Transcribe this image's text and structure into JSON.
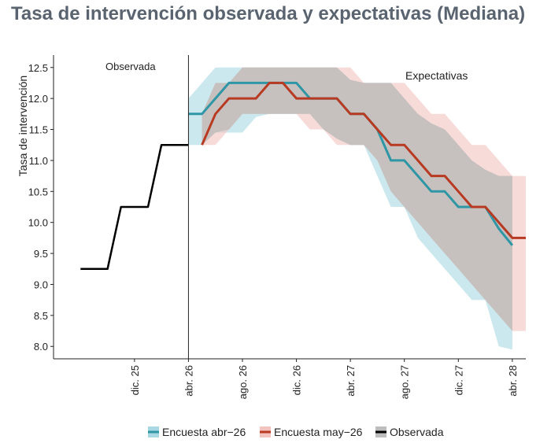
{
  "title": "Tasa de intervención observada y expectativas (Mediana)",
  "chart_data": {
    "type": "line",
    "ylabel": "Tasa de intervención",
    "ylim": [
      7.8,
      12.7
    ],
    "yticks": [
      "8.0",
      "8.5",
      "9.0",
      "9.5",
      "10.0",
      "10.5",
      "11.0",
      "11.5",
      "12.0",
      "12.5"
    ],
    "x_axis": {
      "start": "2025-06",
      "end": "2028-05",
      "ticks": [
        {
          "date": "2025-12",
          "label": "dic. 25"
        },
        {
          "date": "2026-04",
          "label": "abr. 26"
        },
        {
          "date": "2026-08",
          "label": "ago. 26"
        },
        {
          "date": "2026-12",
          "label": "dic. 26"
        },
        {
          "date": "2027-04",
          "label": "abr. 27"
        },
        {
          "date": "2027-08",
          "label": "ago. 27"
        },
        {
          "date": "2027-12",
          "label": "dic. 27"
        },
        {
          "date": "2028-04",
          "label": "abr. 28"
        }
      ]
    },
    "divider_date": "2026-04",
    "annotations": {
      "left": "Observada",
      "right": "Expectativas"
    },
    "series": [
      {
        "name": "Observada",
        "color": "#000000",
        "points": [
          [
            "2025-08",
            9.25
          ],
          [
            "2025-10",
            9.25
          ],
          [
            "2025-11",
            10.25
          ],
          [
            "2026-01",
            10.25
          ],
          [
            "2026-02",
            11.25
          ],
          [
            "2026-04",
            11.25
          ]
        ]
      },
      {
        "name": "Encuesta abr−26",
        "color": "#2f96a6",
        "band_color": "#a8d8e3",
        "points": [
          [
            "2026-04",
            11.75
          ],
          [
            "2026-05",
            11.75
          ],
          [
            "2026-06",
            12.0
          ],
          [
            "2026-07",
            12.25
          ],
          [
            "2026-08",
            12.25
          ],
          [
            "2026-09",
            12.25
          ],
          [
            "2026-10",
            12.25
          ],
          [
            "2026-11",
            12.25
          ],
          [
            "2026-12",
            12.25
          ],
          [
            "2027-01",
            12.0
          ],
          [
            "2027-02",
            12.0
          ],
          [
            "2027-03",
            12.0
          ],
          [
            "2027-04",
            11.75
          ],
          [
            "2027-05",
            11.75
          ],
          [
            "2027-06",
            11.5
          ],
          [
            "2027-07",
            11.0
          ],
          [
            "2027-08",
            11.0
          ],
          [
            "2027-09",
            10.75
          ],
          [
            "2027-10",
            10.5
          ],
          [
            "2027-11",
            10.5
          ],
          [
            "2027-12",
            10.25
          ],
          [
            "2028-01",
            10.25
          ],
          [
            "2028-02",
            10.25
          ],
          [
            "2028-03",
            9.9
          ],
          [
            "2028-04",
            9.63
          ]
        ],
        "lower": [
          11.25,
          11.25,
          11.45,
          11.45,
          11.45,
          11.7,
          11.75,
          11.75,
          11.75,
          11.75,
          11.5,
          11.35,
          11.25,
          11.25,
          10.75,
          10.25,
          10.25,
          9.75,
          9.5,
          9.25,
          9.0,
          8.75,
          8.75,
          8.0,
          7.95
        ],
        "upper": [
          12.0,
          12.25,
          12.5,
          12.5,
          12.5,
          12.5,
          12.5,
          12.5,
          12.5,
          12.5,
          12.5,
          12.5,
          12.3,
          12.25,
          12.25,
          12.25,
          12.0,
          11.75,
          11.6,
          11.5,
          11.25,
          11.0,
          10.85,
          10.75,
          10.75
        ]
      },
      {
        "name": "Encuesta may−26",
        "color": "#b83a22",
        "band_color": "#f2c3bf",
        "points": [
          [
            "2026-05",
            11.25
          ],
          [
            "2026-06",
            11.75
          ],
          [
            "2026-07",
            12.0
          ],
          [
            "2026-08",
            12.0
          ],
          [
            "2026-09",
            12.0
          ],
          [
            "2026-10",
            12.25
          ],
          [
            "2026-11",
            12.25
          ],
          [
            "2026-12",
            12.0
          ],
          [
            "2027-01",
            12.0
          ],
          [
            "2027-02",
            12.0
          ],
          [
            "2027-03",
            12.0
          ],
          [
            "2027-04",
            11.75
          ],
          [
            "2027-05",
            11.75
          ],
          [
            "2027-06",
            11.5
          ],
          [
            "2027-07",
            11.25
          ],
          [
            "2027-08",
            11.25
          ],
          [
            "2027-09",
            11.0
          ],
          [
            "2027-10",
            10.75
          ],
          [
            "2027-11",
            10.75
          ],
          [
            "2027-12",
            10.5
          ],
          [
            "2028-01",
            10.25
          ],
          [
            "2028-02",
            10.25
          ],
          [
            "2028-03",
            10.0
          ],
          [
            "2028-04",
            9.75
          ],
          [
            "2028-05",
            9.75
          ]
        ],
        "lower": [
          11.25,
          11.25,
          11.5,
          11.75,
          11.75,
          11.75,
          11.75,
          11.75,
          11.5,
          11.5,
          11.25,
          11.25,
          11.25,
          11.0,
          10.5,
          10.25,
          10.0,
          9.75,
          9.5,
          9.25,
          9.0,
          8.75,
          8.5,
          8.25,
          8.25
        ],
        "upper": [
          11.75,
          12.25,
          12.25,
          12.5,
          12.5,
          12.5,
          12.5,
          12.5,
          12.5,
          12.5,
          12.5,
          12.5,
          12.25,
          12.25,
          12.25,
          12.25,
          12.0,
          11.75,
          11.75,
          11.5,
          11.25,
          11.25,
          11.0,
          10.75,
          10.75
        ]
      }
    ],
    "legend": {
      "placement": "bottom",
      "items": [
        {
          "label": "Encuesta abr−26",
          "fill": "#a8d8e3",
          "line": "#2f96a6"
        },
        {
          "label": "Encuesta may−26",
          "fill": "#f2c3bf",
          "line": "#b83a22"
        },
        {
          "label": "Observada",
          "fill": "#bdbdbd",
          "line": "#000000"
        }
      ]
    }
  }
}
